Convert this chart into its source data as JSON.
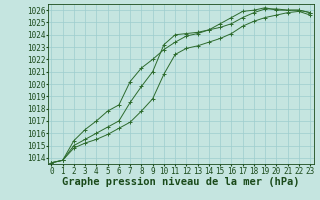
{
  "title": "Graphe pression niveau de la mer (hPa)",
  "x_values": [
    0,
    1,
    2,
    3,
    4,
    5,
    6,
    7,
    8,
    9,
    10,
    11,
    12,
    13,
    14,
    15,
    16,
    17,
    18,
    19,
    20,
    21,
    22,
    23
  ],
  "line1": [
    1013.6,
    1013.8,
    1015.0,
    1015.5,
    1016.0,
    1016.5,
    1017.0,
    1018.5,
    1019.8,
    1021.0,
    1023.2,
    1024.0,
    1024.1,
    1024.2,
    1024.4,
    1024.6,
    1024.9,
    1025.4,
    1025.8,
    1026.1,
    1026.1,
    1026.0,
    1026.0,
    1025.8
  ],
  "line2": [
    1013.6,
    1013.8,
    1014.8,
    1015.2,
    1015.5,
    1015.9,
    1016.4,
    1016.9,
    1017.8,
    1018.8,
    1020.8,
    1022.4,
    1022.9,
    1023.1,
    1023.4,
    1023.7,
    1024.1,
    1024.7,
    1025.1,
    1025.4,
    1025.6,
    1025.8,
    1025.9,
    1025.6
  ],
  "line3": [
    1013.6,
    1013.8,
    1015.4,
    1016.3,
    1017.0,
    1017.8,
    1018.3,
    1020.2,
    1021.3,
    1022.0,
    1022.8,
    1023.4,
    1023.9,
    1024.1,
    1024.4,
    1024.9,
    1025.4,
    1025.9,
    1026.0,
    1026.2,
    1026.0,
    1026.0,
    1026.0,
    1025.8
  ],
  "line_color": "#2d6b2d",
  "background_color": "#c5e5e0",
  "grid_color": "#9ecece",
  "axis_label_color": "#1a4a1a",
  "ylim_min": 1013.5,
  "ylim_max": 1026.5,
  "yticks": [
    1014,
    1015,
    1016,
    1017,
    1018,
    1019,
    1020,
    1021,
    1022,
    1023,
    1024,
    1025,
    1026
  ],
  "xticks": [
    0,
    1,
    2,
    3,
    4,
    5,
    6,
    7,
    8,
    9,
    10,
    11,
    12,
    13,
    14,
    15,
    16,
    17,
    18,
    19,
    20,
    21,
    22,
    23
  ],
  "title_fontsize": 7.5,
  "tick_fontsize": 5.5,
  "figwidth": 3.2,
  "figheight": 2.0,
  "dpi": 100
}
